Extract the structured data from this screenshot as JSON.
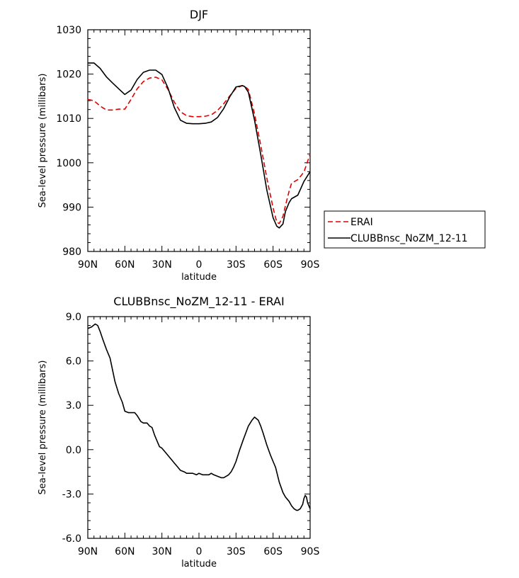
{
  "chart_data": [
    {
      "type": "line",
      "title": "DJF",
      "xlabel": "latitude",
      "ylabel": "Sea-level pressure (millibars)",
      "xlim": [
        90,
        -90
      ],
      "ylim": [
        980,
        1030
      ],
      "x_ticks": [
        90,
        60,
        30,
        0,
        -30,
        -60,
        -90
      ],
      "x_tick_labels": [
        "90N",
        "60N",
        "30N",
        "0",
        "30S",
        "60S",
        "90S"
      ],
      "y_ticks": [
        980,
        990,
        1000,
        1010,
        1020,
        1030
      ],
      "y_tick_labels": [
        "980",
        "990",
        "1000",
        "1010",
        "1020",
        "1030"
      ],
      "legend_placement": "right",
      "series": [
        {
          "name": "ERAI",
          "color": "#e00000",
          "dash": "dashed",
          "x": [
            90,
            85,
            80,
            75,
            70,
            65,
            60,
            55,
            50,
            45,
            40,
            35,
            30,
            25,
            20,
            15,
            10,
            5,
            0,
            -5,
            -10,
            -15,
            -20,
            -25,
            -30,
            -35,
            -37,
            -40,
            -45,
            -50,
            -55,
            -60,
            -63,
            -65,
            -68,
            -70,
            -73,
            -75,
            -80,
            -85,
            -90
          ],
          "values": [
            1014.3,
            1014.0,
            1012.8,
            1011.9,
            1011.9,
            1012.1,
            1012.1,
            1014.3,
            1016.7,
            1018.3,
            1019.1,
            1019.3,
            1018.7,
            1016.5,
            1013.7,
            1011.5,
            1010.6,
            1010.4,
            1010.4,
            1010.5,
            1010.8,
            1011.8,
            1013.3,
            1015.1,
            1016.8,
            1017.4,
            1017.3,
            1016.5,
            1011.0,
            1004.0,
            996.5,
            989.8,
            986.6,
            986.3,
            987.9,
            990.3,
            993.6,
            995.4,
            996.2,
            997.9,
            1002.0
          ]
        },
        {
          "name": "CLUBBnsc_NoZM_12-11",
          "color": "#000000",
          "dash": "solid",
          "x": [
            90,
            85,
            80,
            75,
            70,
            65,
            60,
            55,
            50,
            45,
            40,
            35,
            30,
            25,
            20,
            15,
            10,
            5,
            0,
            -5,
            -10,
            -15,
            -20,
            -25,
            -30,
            -35,
            -37,
            -40,
            -45,
            -50,
            -55,
            -60,
            -63,
            -65,
            -68,
            -70,
            -73,
            -75,
            -80,
            -85,
            -90
          ],
          "values": [
            1022.5,
            1022.5,
            1021.3,
            1019.4,
            1018.0,
            1016.7,
            1015.4,
            1016.4,
            1018.8,
            1020.4,
            1020.9,
            1020.9,
            1019.9,
            1016.8,
            1012.5,
            1009.6,
            1008.9,
            1008.8,
            1008.8,
            1008.9,
            1009.2,
            1010.2,
            1012.2,
            1014.9,
            1017.1,
            1017.4,
            1017.2,
            1015.9,
            1009.6,
            1001.9,
            993.8,
            987.6,
            985.7,
            985.3,
            986.2,
            989.0,
            991.0,
            991.9,
            992.7,
            995.8,
            998.0
          ]
        }
      ]
    },
    {
      "type": "line",
      "title": "CLUBBnsc_NoZM_12-11 - ERAI",
      "xlabel": "latitude",
      "ylabel": "Sea-level pressure (millibars)",
      "xlim": [
        90,
        -90
      ],
      "ylim": [
        -6.0,
        9.0
      ],
      "x_ticks": [
        90,
        60,
        30,
        0,
        -30,
        -60,
        -90
      ],
      "x_tick_labels": [
        "90N",
        "60N",
        "30N",
        "0",
        "30S",
        "60S",
        "90S"
      ],
      "y_ticks": [
        -6,
        -3,
        0,
        3,
        6,
        9
      ],
      "y_tick_labels": [
        "-6.0",
        "-3.0",
        "0.0",
        "3.0",
        "6.0",
        "9.0"
      ],
      "series": [
        {
          "color": "#000000",
          "dash": "solid",
          "x": [
            90,
            87,
            84,
            82,
            80,
            78,
            75,
            72,
            70,
            68,
            65,
            62,
            60,
            57,
            55,
            52,
            50,
            47,
            45,
            42,
            40,
            38,
            36,
            34,
            32,
            30,
            28,
            25,
            22,
            20,
            18,
            15,
            12,
            10,
            8,
            5,
            2,
            0,
            -3,
            -5,
            -8,
            -10,
            -12,
            -15,
            -18,
            -20,
            -22,
            -24,
            -26,
            -28,
            -30,
            -33,
            -36,
            -40,
            -43,
            -45,
            -48,
            -50,
            -52,
            -55,
            -58,
            -60,
            -62,
            -65,
            -68,
            -70,
            -73,
            -75,
            -77,
            -79,
            -80,
            -82,
            -84,
            -85,
            -86,
            -87,
            -88,
            -90
          ],
          "values": [
            8.2,
            8.3,
            8.5,
            8.4,
            8.0,
            7.5,
            6.8,
            6.2,
            5.4,
            4.6,
            3.8,
            3.2,
            2.6,
            2.5,
            2.5,
            2.5,
            2.3,
            1.9,
            1.8,
            1.8,
            1.6,
            1.5,
            1.0,
            0.6,
            0.2,
            0.1,
            -0.1,
            -0.4,
            -0.7,
            -0.9,
            -1.1,
            -1.4,
            -1.5,
            -1.6,
            -1.6,
            -1.6,
            -1.7,
            -1.6,
            -1.7,
            -1.7,
            -1.7,
            -1.6,
            -1.7,
            -1.8,
            -1.9,
            -1.9,
            -1.8,
            -1.7,
            -1.5,
            -1.2,
            -0.8,
            0.0,
            0.7,
            1.6,
            2.0,
            2.2,
            2.0,
            1.6,
            1.1,
            0.3,
            -0.4,
            -0.8,
            -1.2,
            -2.2,
            -2.9,
            -3.2,
            -3.5,
            -3.8,
            -4.0,
            -4.1,
            -4.1,
            -4.0,
            -3.7,
            -3.3,
            -3.1,
            -3.2,
            -3.6,
            -4.0
          ]
        }
      ]
    }
  ]
}
